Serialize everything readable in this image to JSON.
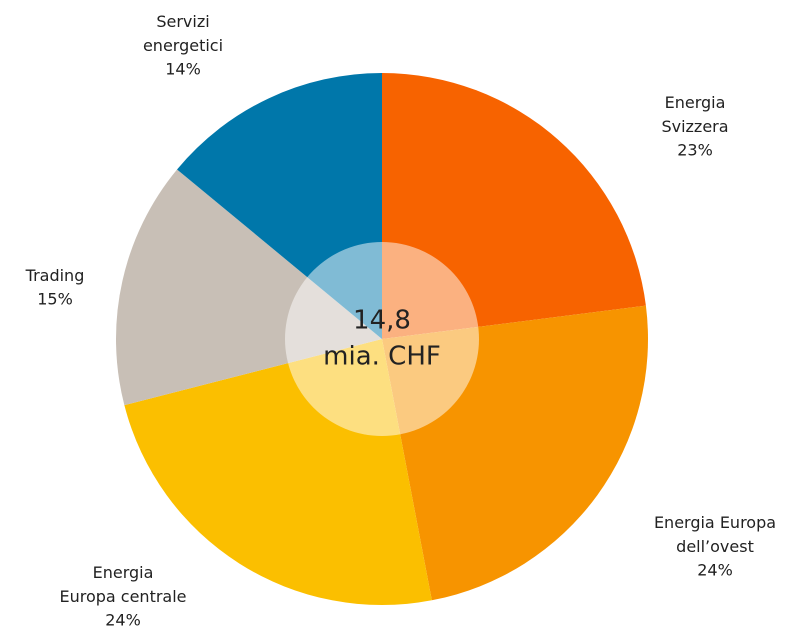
{
  "chart_data": {
    "type": "pie",
    "categories": [
      "Energia\nSvizzera",
      "Energia Europa\ndell’ovest",
      "Energia\nEuropa centrale",
      "Trading",
      "Servizi\nenergetici"
    ],
    "values": [
      23,
      24,
      24,
      15,
      14
    ],
    "value_labels": [
      "23%",
      "24%",
      "24%",
      "15%",
      "14%"
    ],
    "colors": [
      "#f76300",
      "#f79400",
      "#fbbf00",
      "#c8bfb6",
      "#0077aa"
    ],
    "center_label": [
      "14,8",
      "mia. CHF"
    ]
  }
}
